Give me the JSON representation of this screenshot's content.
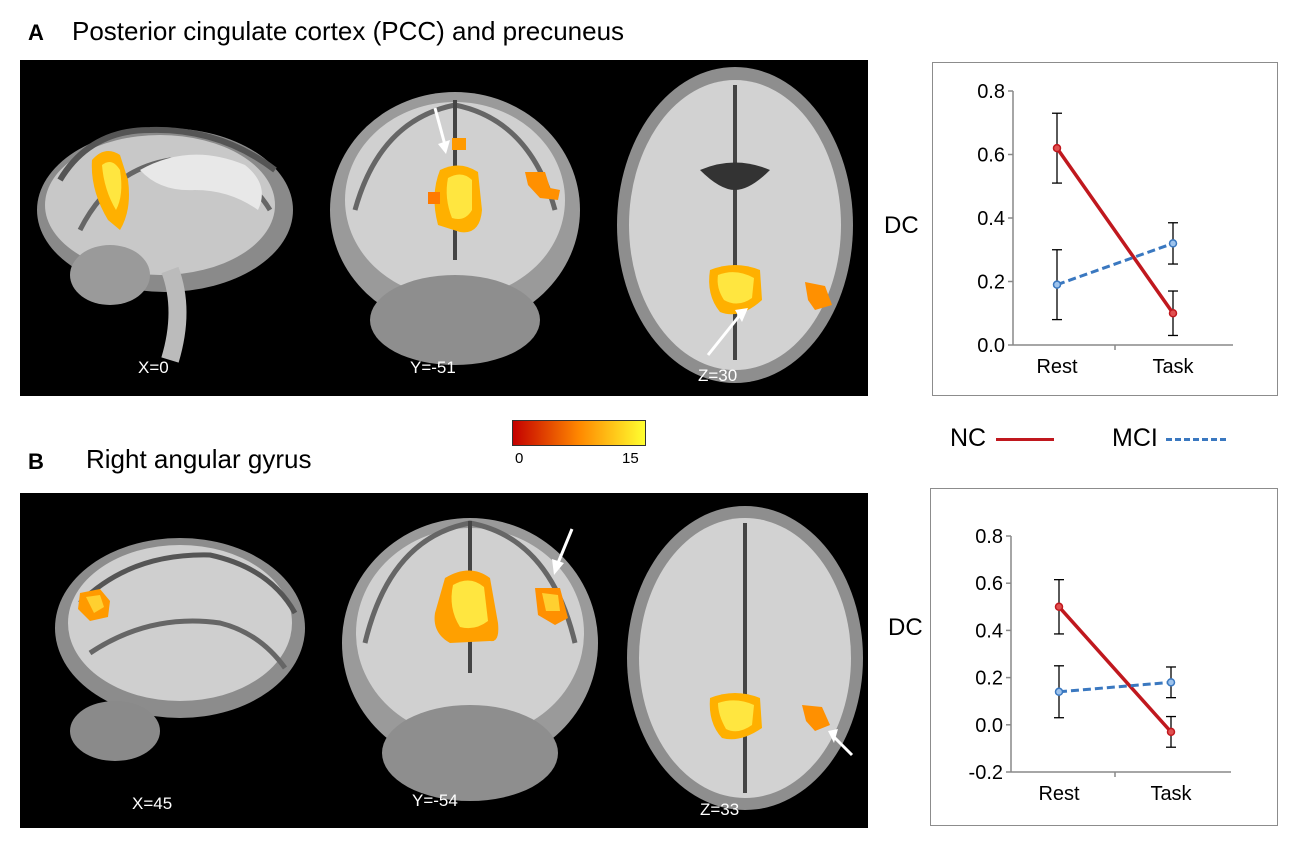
{
  "panel_a": {
    "letter": "A",
    "title": "Posterior cingulate cortex (PCC) and precuneus",
    "slices": [
      "X=0",
      "Y=-51",
      "Z=30"
    ],
    "dc_label": "DC"
  },
  "panel_b": {
    "letter": "B",
    "title": "Right angular gyrus",
    "slices": [
      "X=45",
      "Y=-54",
      "Z=33"
    ],
    "dc_label": "DC"
  },
  "colorbar": {
    "min_label": "0",
    "max_label": "15",
    "colors": [
      "#c40000",
      "#ff8800",
      "#ffff30"
    ]
  },
  "legend": {
    "items": [
      {
        "label": "NC",
        "color": "#c0181e",
        "style": "solid"
      },
      {
        "label": "MCI",
        "color": "#3a78c0",
        "style": "dashed"
      }
    ]
  },
  "chart_data": [
    {
      "type": "line",
      "categories": [
        "Rest",
        "Task"
      ],
      "ylim": [
        0.0,
        0.8
      ],
      "yticks": [
        "0.0",
        "0.2",
        "0.4",
        "0.6",
        "0.8"
      ],
      "ylabel": "DC",
      "series": [
        {
          "name": "NC",
          "values": [
            0.62,
            0.1
          ],
          "errors": [
            0.11,
            0.07
          ],
          "color": "#c0181e",
          "dashed": false
        },
        {
          "name": "MCI",
          "values": [
            0.19,
            0.32
          ],
          "errors": [
            0.11,
            0.065
          ],
          "color": "#3a78c0",
          "dashed": true
        }
      ]
    },
    {
      "type": "line",
      "categories": [
        "Rest",
        "Task"
      ],
      "ylim": [
        -0.2,
        0.8
      ],
      "yticks": [
        "-0.2",
        "0.0",
        "0.2",
        "0.4",
        "0.6",
        "0.8"
      ],
      "ylabel": "DC",
      "series": [
        {
          "name": "NC",
          "values": [
            0.5,
            -0.03
          ],
          "errors": [
            0.115,
            0.065
          ],
          "color": "#c0181e",
          "dashed": false
        },
        {
          "name": "MCI",
          "values": [
            0.14,
            0.18
          ],
          "errors": [
            0.11,
            0.065
          ],
          "color": "#3a78c0",
          "dashed": true
        }
      ]
    }
  ]
}
